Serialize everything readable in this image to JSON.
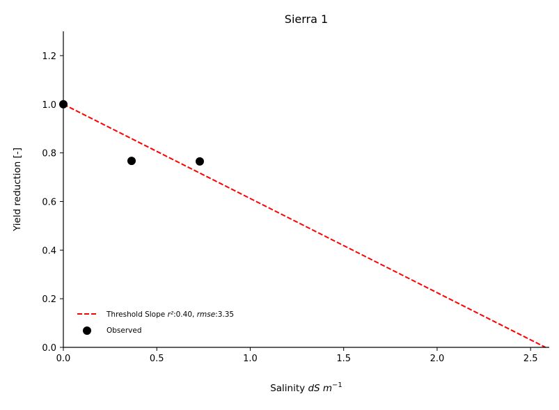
{
  "chart_data": {
    "type": "scatter",
    "title": "Sierra 1",
    "xlabel_prefix": "Salinity ",
    "xlabel_unit": "dS m",
    "xlabel_exp": "−1",
    "ylabel": "Yield reduction [-]",
    "xlim": [
      0.0,
      2.6
    ],
    "ylim": [
      0.0,
      1.3
    ],
    "x_ticks": [
      0.0,
      0.5,
      1.0,
      1.5,
      2.0,
      2.5
    ],
    "x_tick_labels": [
      "0.0",
      "0.5",
      "1.0",
      "1.5",
      "2.0",
      "2.5"
    ],
    "y_ticks": [
      0.0,
      0.2,
      0.4,
      0.6,
      0.8,
      1.0,
      1.2
    ],
    "y_tick_labels": [
      "0.0",
      "0.2",
      "0.4",
      "0.6",
      "0.8",
      "1.0",
      "1.2"
    ],
    "grid": false,
    "legend_position": "lower-left",
    "series": [
      {
        "name": "Threshold Slope",
        "legend_label": {
          "prefix": "Threshold Slope ",
          "r2_label": "r²",
          "r2_value": ":0.40, ",
          "rmse_label": "rmse",
          "rmse_value": ":3.35"
        },
        "kind": "line",
        "style": "dashed",
        "color": "#ff0000",
        "x": [
          0.0,
          2.58
        ],
        "y": [
          1.0,
          0.0
        ]
      },
      {
        "name": "Observed",
        "kind": "scatter",
        "color": "#000000",
        "x": [
          0.0,
          0.365,
          0.73
        ],
        "y": [
          1.0,
          0.767,
          0.765
        ]
      }
    ]
  }
}
